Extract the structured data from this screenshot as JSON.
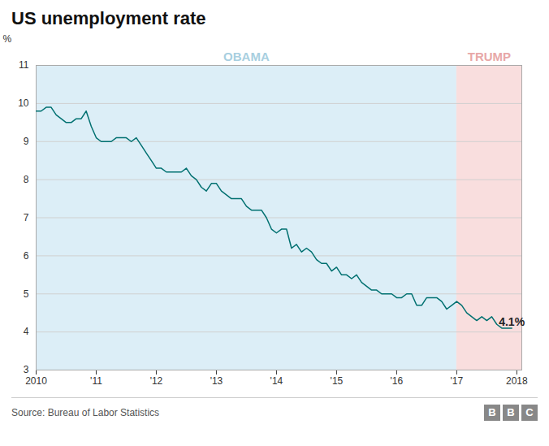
{
  "chart_data": {
    "type": "line",
    "title": "US unemployment rate",
    "ylabel": "%",
    "source": "Source: Bureau of Labor Statistics",
    "logo": "BBC",
    "color": "#007070",
    "grid": true,
    "xlim": [
      2010.0,
      2018.083
    ],
    "xticks": [
      2010,
      {
        "value": 2011,
        "label": "'11"
      },
      {
        "value": 2012,
        "label": "'12"
      },
      {
        "value": 2013,
        "label": "'13"
      },
      {
        "value": 2014,
        "label": "'14"
      },
      {
        "value": 2015,
        "label": "'15"
      },
      {
        "value": 2016,
        "label": "'16"
      },
      {
        "value": 2017,
        "label": "'17"
      },
      2018
    ],
    "ylim": [
      3,
      11
    ],
    "yticks": [
      3,
      4,
      5,
      6,
      7,
      8,
      9,
      10,
      11
    ],
    "shaded_regions": [
      {
        "label": "OBAMA",
        "start": 2010.0,
        "end": 2017.0,
        "color": "#dceef7",
        "label_color": "#a8cfe0"
      },
      {
        "label": "TRUMP",
        "start": 2017.0,
        "end": 2018.083,
        "color": "#f9dede",
        "label_color": "#e8a8a8"
      }
    ],
    "annotations": [
      {
        "text": "4.1%",
        "x": 2017.7,
        "y": 4.25
      }
    ],
    "x": [
      2010.0,
      2010.083,
      2010.167,
      2010.25,
      2010.333,
      2010.417,
      2010.5,
      2010.583,
      2010.667,
      2010.75,
      2010.833,
      2010.917,
      2011.0,
      2011.083,
      2011.167,
      2011.25,
      2011.333,
      2011.417,
      2011.5,
      2011.583,
      2011.667,
      2011.75,
      2011.833,
      2011.917,
      2012.0,
      2012.083,
      2012.167,
      2012.25,
      2012.333,
      2012.417,
      2012.5,
      2012.583,
      2012.667,
      2012.75,
      2012.833,
      2012.917,
      2013.0,
      2013.083,
      2013.167,
      2013.25,
      2013.333,
      2013.417,
      2013.5,
      2013.583,
      2013.667,
      2013.75,
      2013.833,
      2013.917,
      2014.0,
      2014.083,
      2014.167,
      2014.25,
      2014.333,
      2014.417,
      2014.5,
      2014.583,
      2014.667,
      2014.75,
      2014.833,
      2014.917,
      2015.0,
      2015.083,
      2015.167,
      2015.25,
      2015.333,
      2015.417,
      2015.5,
      2015.583,
      2015.667,
      2015.75,
      2015.833,
      2015.917,
      2016.0,
      2016.083,
      2016.167,
      2016.25,
      2016.333,
      2016.417,
      2016.5,
      2016.583,
      2016.667,
      2016.75,
      2016.833,
      2016.917,
      2017.0,
      2017.083,
      2017.167,
      2017.25,
      2017.333,
      2017.417,
      2017.5,
      2017.583,
      2017.667,
      2017.75,
      2017.833,
      2017.917
    ],
    "values": [
      9.8,
      9.8,
      9.9,
      9.9,
      9.7,
      9.6,
      9.5,
      9.5,
      9.6,
      9.6,
      9.8,
      9.4,
      9.1,
      9.0,
      9.0,
      9.0,
      9.1,
      9.1,
      9.1,
      9.0,
      9.1,
      8.9,
      8.7,
      8.5,
      8.3,
      8.3,
      8.2,
      8.2,
      8.2,
      8.2,
      8.3,
      8.1,
      8.0,
      7.8,
      7.7,
      7.9,
      7.9,
      7.7,
      7.6,
      7.5,
      7.5,
      7.5,
      7.3,
      7.2,
      7.2,
      7.2,
      7.0,
      6.7,
      6.6,
      6.7,
      6.7,
      6.2,
      6.3,
      6.1,
      6.2,
      6.1,
      5.9,
      5.8,
      5.8,
      5.6,
      5.7,
      5.5,
      5.5,
      5.4,
      5.5,
      5.3,
      5.2,
      5.1,
      5.1,
      5.0,
      5.0,
      5.0,
      4.9,
      4.9,
      5.0,
      5.0,
      4.7,
      4.7,
      4.9,
      4.9,
      4.9,
      4.8,
      4.6,
      4.7,
      4.8,
      4.7,
      4.5,
      4.4,
      4.3,
      4.4,
      4.3,
      4.4,
      4.2,
      4.1,
      4.1,
      4.1
    ]
  }
}
